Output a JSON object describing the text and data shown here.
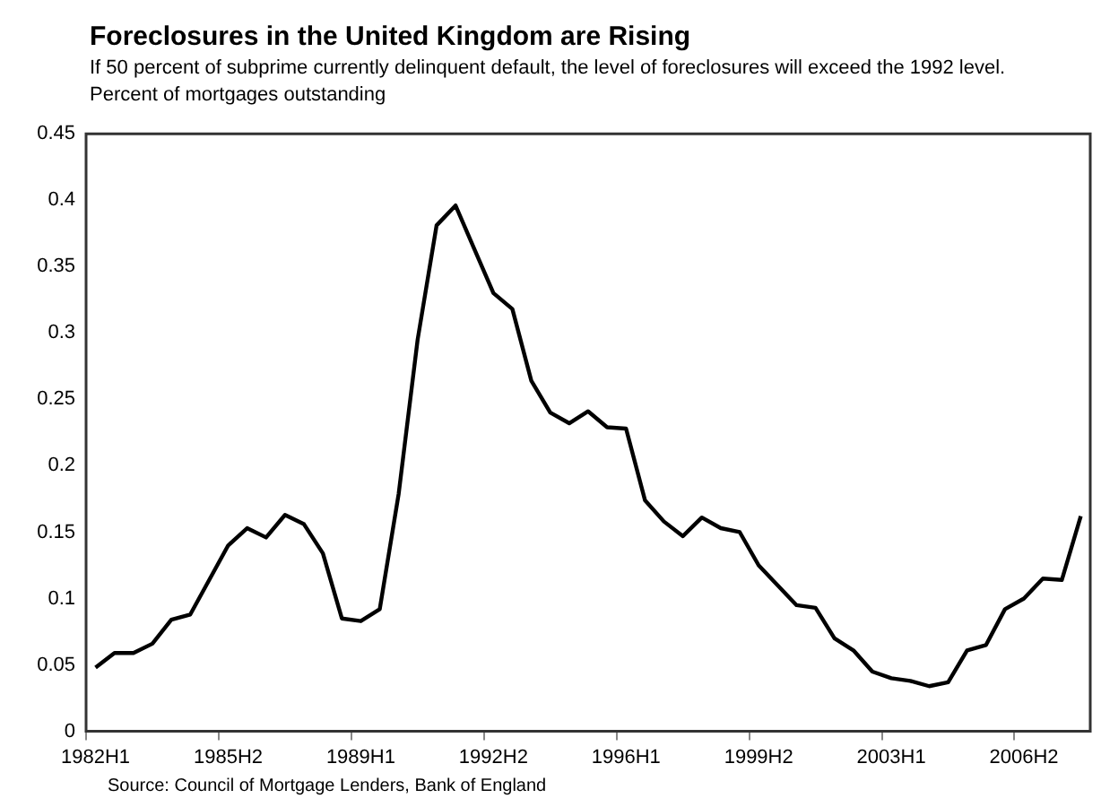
{
  "chart_data": {
    "type": "line",
    "title": "Foreclosures in the United Kingdom are Rising",
    "subtitle": "If 50 percent of subprime currently delinquent default, the level of foreclosures will exceed the 1992 level.",
    "ylabel": "Percent of mortgages outstanding",
    "categories": [
      "1982H1",
      null,
      null,
      null,
      null,
      null,
      null,
      "1985H2",
      null,
      null,
      null,
      null,
      null,
      null,
      "1989H1",
      null,
      null,
      null,
      null,
      null,
      null,
      "1992H2",
      null,
      null,
      null,
      null,
      null,
      null,
      "1996H1",
      null,
      null,
      null,
      null,
      null,
      null,
      "1999H2",
      null,
      null,
      null,
      null,
      null,
      null,
      "2003H1",
      null,
      null,
      null,
      null,
      null,
      null,
      "2006H2",
      null,
      null,
      null
    ],
    "series": [
      {
        "color": "#000000",
        "values": [
          0.048,
          0.059,
          0.059,
          0.066,
          0.084,
          0.088,
          0.114,
          0.14,
          0.153,
          0.146,
          0.163,
          0.156,
          0.134,
          0.085,
          0.083,
          0.092,
          0.179,
          0.295,
          0.381,
          0.396,
          0.363,
          0.33,
          0.318,
          0.264,
          0.24,
          0.232,
          0.241,
          0.229,
          0.228,
          0.174,
          0.158,
          0.147,
          0.161,
          0.153,
          0.15,
          0.125,
          0.11,
          0.095,
          0.093,
          0.07,
          0.061,
          0.045,
          0.04,
          0.038,
          0.034,
          0.037,
          0.061,
          0.065,
          0.092,
          0.1,
          0.115,
          0.114,
          0.162
        ]
      }
    ],
    "ylim": [
      0,
      0.45
    ],
    "yticks": [
      0,
      0.05,
      0.1,
      0.15,
      0.2,
      0.25,
      0.3,
      0.35,
      0.4,
      0.45
    ],
    "grid": false,
    "legend": false,
    "marker": "none",
    "line_style": "solid",
    "annotations": [
      "Source: Council of Mortgage Lenders, Bank of England"
    ]
  }
}
